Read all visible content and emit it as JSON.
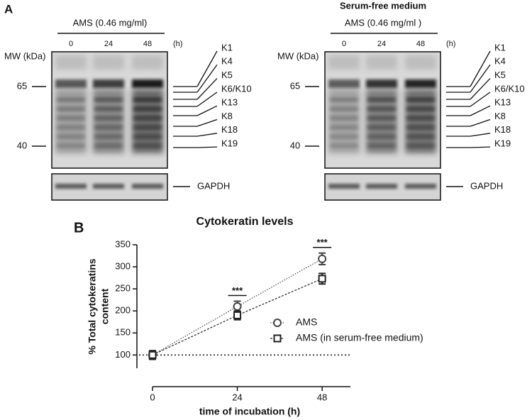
{
  "panel_a": {
    "label": "A",
    "blots": [
      {
        "treatment": "AMS (0.46 mg/ml)",
        "times": [
          "0",
          "24",
          "48"
        ],
        "time_unit": "(h)",
        "mw_label": "MW (kDa)",
        "mw_markers": [
          "65",
          "40"
        ],
        "bands": [
          "K1",
          "K4",
          "K5",
          "K6/K10",
          "K13",
          "K8",
          "K18",
          "K19"
        ],
        "loading_control": "GAPDH"
      },
      {
        "condition": "Serum-free medium",
        "treatment": "AMS (0.46 mg/ml )",
        "times": [
          "0",
          "24",
          "48"
        ],
        "time_unit": "(h)",
        "mw_label": "MW (kDa)",
        "mw_markers": [
          "65",
          "40"
        ],
        "bands": [
          "K1",
          "K4",
          "K5",
          "K6/K10",
          "K13",
          "K8",
          "K18",
          "K19"
        ],
        "loading_control": "GAPDH"
      }
    ]
  },
  "panel_b": {
    "label": "B"
  },
  "chart_data": {
    "type": "line",
    "title": "Cytokeratin levels",
    "x_label": "time of incubation (h)",
    "y_label": [
      "% Total cytokeratins",
      "content"
    ],
    "x": [
      0,
      24,
      48
    ],
    "xlim": [
      0,
      56
    ],
    "xticks": [
      0,
      24,
      48
    ],
    "ylim": [
      70,
      350
    ],
    "yticks": [
      100,
      150,
      200,
      250,
      300,
      350
    ],
    "series": [
      {
        "name": "AMS",
        "marker": "circle",
        "color": "#444444",
        "values": [
          100,
          210,
          318
        ],
        "errors": [
          10,
          12,
          13
        ]
      },
      {
        "name": "AMS (in serum-free medium)",
        "marker": "square",
        "color": "#222222",
        "values": [
          100,
          190,
          273
        ],
        "errors": [
          9,
          10,
          12
        ]
      }
    ],
    "reference_line": 100,
    "annotations": [
      {
        "x": 24,
        "label": "***"
      },
      {
        "x": 48,
        "label": "***"
      }
    ],
    "legend": "right"
  }
}
